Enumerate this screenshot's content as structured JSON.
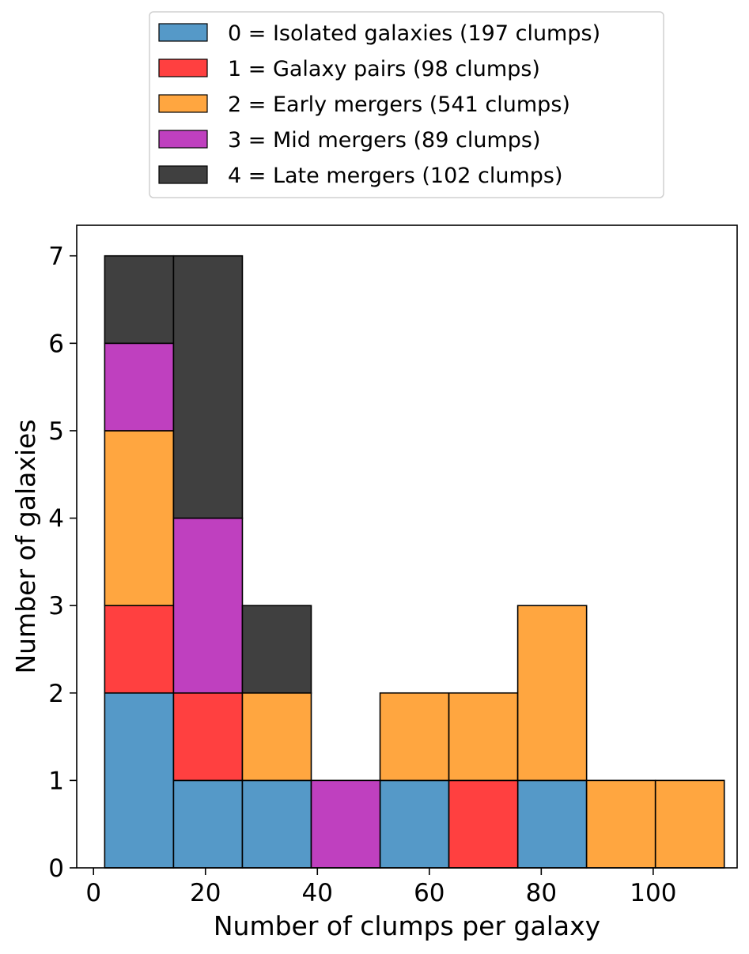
{
  "chart_data": {
    "type": "bar",
    "stacked": true,
    "histogram": true,
    "xlabel": "Number of clumps per galaxy",
    "ylabel": "Number of galaxies",
    "xlim": [
      -3,
      115
    ],
    "ylim": [
      0,
      7.35
    ],
    "xticks": [
      0,
      20,
      40,
      60,
      80,
      100
    ],
    "yticks": [
      0,
      1,
      2,
      3,
      4,
      5,
      6,
      7
    ],
    "bin_edges": [
      2,
      14.3,
      26.6,
      38.9,
      51.2,
      63.5,
      75.8,
      88.1,
      100.4,
      112.7
    ],
    "grid": false,
    "legend_position": "top (outside plot)",
    "series": [
      {
        "name": "0 = Isolated galaxies (197 clumps)",
        "color": "#5599c8",
        "values": [
          2,
          1,
          1,
          0,
          1,
          0,
          1,
          0,
          0
        ]
      },
      {
        "name": "1 = Galaxy pairs (98 clumps)",
        "color": "#ff4040",
        "values": [
          1,
          1,
          0,
          0,
          0,
          1,
          0,
          0,
          0
        ]
      },
      {
        "name": "2 = Early mergers (541 clumps)",
        "color": "#ffa640",
        "values": [
          2,
          0,
          1,
          0,
          1,
          1,
          2,
          1,
          1
        ]
      },
      {
        "name": "3 = Mid mergers (89 clumps)",
        "color": "#bf40bf",
        "values": [
          1,
          2,
          0,
          1,
          0,
          0,
          0,
          0,
          0
        ]
      },
      {
        "name": "4 = Late mergers (102 clumps)",
        "color": "#404040",
        "values": [
          1,
          3,
          1,
          0,
          0,
          0,
          0,
          0,
          0
        ]
      }
    ]
  }
}
